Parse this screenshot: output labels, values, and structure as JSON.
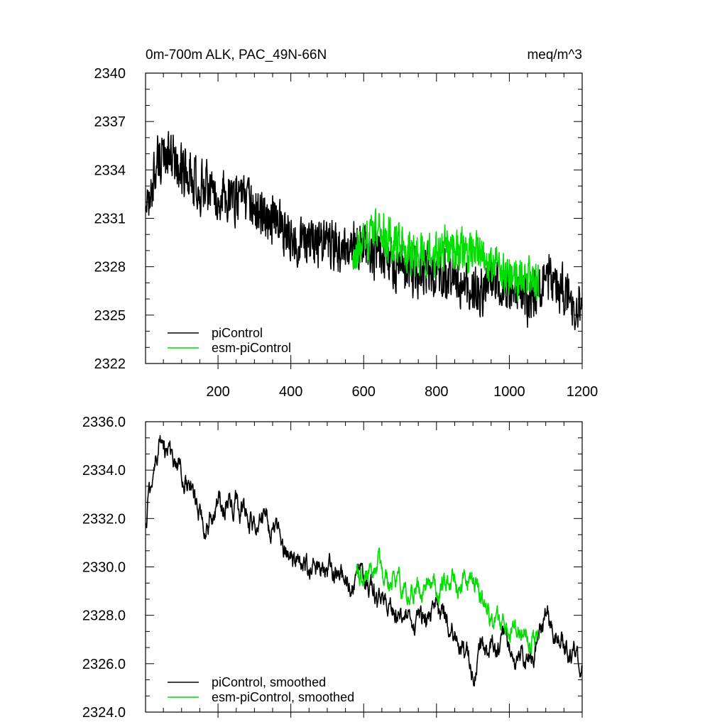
{
  "chart_data": [
    {
      "type": "line",
      "title_left": "0m-700m ALK, PAC_49N-66N",
      "title_right": "meq/m^3",
      "xlabel": "",
      "ylabel": "",
      "xlim": [
        1,
        1200
      ],
      "ylim": [
        2322,
        2340
      ],
      "x_ticks": [
        200,
        400,
        600,
        800,
        1000,
        1200
      ],
      "x_tick_labels": [
        "200",
        "400",
        "600",
        "800",
        "1000",
        "1200"
      ],
      "y_ticks": [
        2322,
        2325,
        2328,
        2331,
        2334,
        2337,
        2340
      ],
      "y_tick_labels": [
        "2322",
        "2325",
        "2328",
        "2331",
        "2334",
        "2337",
        "2340"
      ],
      "legend_position": "bottom-left",
      "legend": [
        "piControl",
        "esm-piControl"
      ],
      "series": [
        {
          "name": "piControl",
          "color": "#000000",
          "x_range": [
            1,
            1200
          ],
          "anchors": [
            [
              1,
              2332
            ],
            [
              10,
              2331.5
            ],
            [
              30,
              2334.5
            ],
            [
              60,
              2335
            ],
            [
              100,
              2334
            ],
            [
              150,
              2333
            ],
            [
              200,
              2332.5
            ],
            [
              250,
              2332.3
            ],
            [
              300,
              2331.5
            ],
            [
              350,
              2331
            ],
            [
              400,
              2330
            ],
            [
              450,
              2329.5
            ],
            [
              500,
              2329.3
            ],
            [
              550,
              2329
            ],
            [
              600,
              2329.5
            ],
            [
              650,
              2328.6
            ],
            [
              700,
              2328
            ],
            [
              750,
              2327.6
            ],
            [
              800,
              2327.8
            ],
            [
              850,
              2327.3
            ],
            [
              900,
              2326.3
            ],
            [
              950,
              2327
            ],
            [
              1000,
              2326.5
            ],
            [
              1050,
              2326
            ],
            [
              1100,
              2327.3
            ],
            [
              1150,
              2326.5
            ],
            [
              1200,
              2325.6
            ]
          ],
          "noise_amplitude": 1.9,
          "min": 2322.6,
          "max": 2337.0
        },
        {
          "name": "esm-piControl",
          "color": "#00dd00",
          "x_range": [
            570,
            1080
          ],
          "anchors": [
            [
              570,
              2329
            ],
            [
              600,
              2329.7
            ],
            [
              650,
              2330
            ],
            [
              700,
              2329.3
            ],
            [
              750,
              2328.8
            ],
            [
              800,
              2329
            ],
            [
              850,
              2329.2
            ],
            [
              900,
              2328.8
            ],
            [
              950,
              2328
            ],
            [
              1000,
              2327.3
            ],
            [
              1050,
              2327.6
            ],
            [
              1080,
              2326.6
            ]
          ],
          "noise_amplitude": 1.6,
          "min": 2323.5,
          "max": 2332.5
        }
      ]
    },
    {
      "type": "line",
      "xlabel": "",
      "ylabel": "",
      "xlim": [
        1,
        1200
      ],
      "ylim": [
        2324,
        2336
      ],
      "x_ticks": [
        200,
        400,
        600,
        800,
        1000,
        1200
      ],
      "y_ticks": [
        2324,
        2326,
        2328,
        2330,
        2332,
        2334,
        2336
      ],
      "y_tick_labels": [
        "2324.0",
        "2326.0",
        "2328.0",
        "2330.0",
        "2332.0",
        "2334.0",
        "2336.0"
      ],
      "legend_position": "bottom-left",
      "legend": [
        "piControl, smoothed",
        "esm-piControl, smoothed"
      ],
      "series": [
        {
          "name": "piControl, smoothed",
          "color": "#000000",
          "x_range": [
            1,
            1200
          ],
          "anchors": [
            [
              1,
              2331.8
            ],
            [
              15,
              2333.5
            ],
            [
              30,
              2335
            ],
            [
              45,
              2335.6
            ],
            [
              60,
              2334.5
            ],
            [
              100,
              2334.2
            ],
            [
              150,
              2332
            ],
            [
              200,
              2332.5
            ],
            [
              250,
              2332.8
            ],
            [
              300,
              2331.8
            ],
            [
              350,
              2331.5
            ],
            [
              400,
              2330.2
            ],
            [
              450,
              2330
            ],
            [
              500,
              2329.7
            ],
            [
              550,
              2329.5
            ],
            [
              600,
              2329.5
            ],
            [
              650,
              2328.5
            ],
            [
              700,
              2328
            ],
            [
              750,
              2327.8
            ],
            [
              800,
              2328
            ],
            [
              850,
              2327.3
            ],
            [
              900,
              2325.8
            ],
            [
              950,
              2327
            ],
            [
              1000,
              2326.7
            ],
            [
              1050,
              2326.1
            ],
            [
              1100,
              2327.6
            ],
            [
              1150,
              2326.8
            ],
            [
              1200,
              2325.8
            ]
          ],
          "noise_amplitude": 0.9,
          "min": 2324.1,
          "max": 2335.9
        },
        {
          "name": "esm-piControl, smoothed",
          "color": "#00dd00",
          "x_range": [
            580,
            1080
          ],
          "anchors": [
            [
              580,
              2329.7
            ],
            [
              600,
              2329.6
            ],
            [
              650,
              2330
            ],
            [
              700,
              2329
            ],
            [
              750,
              2329
            ],
            [
              800,
              2329.3
            ],
            [
              850,
              2329.5
            ],
            [
              900,
              2329.4
            ],
            [
              950,
              2327.6
            ],
            [
              1000,
              2327.5
            ],
            [
              1050,
              2327.3
            ],
            [
              1080,
              2326.8
            ]
          ],
          "noise_amplitude": 0.9,
          "min": 2324.8,
          "max": 2331.5
        }
      ]
    }
  ]
}
